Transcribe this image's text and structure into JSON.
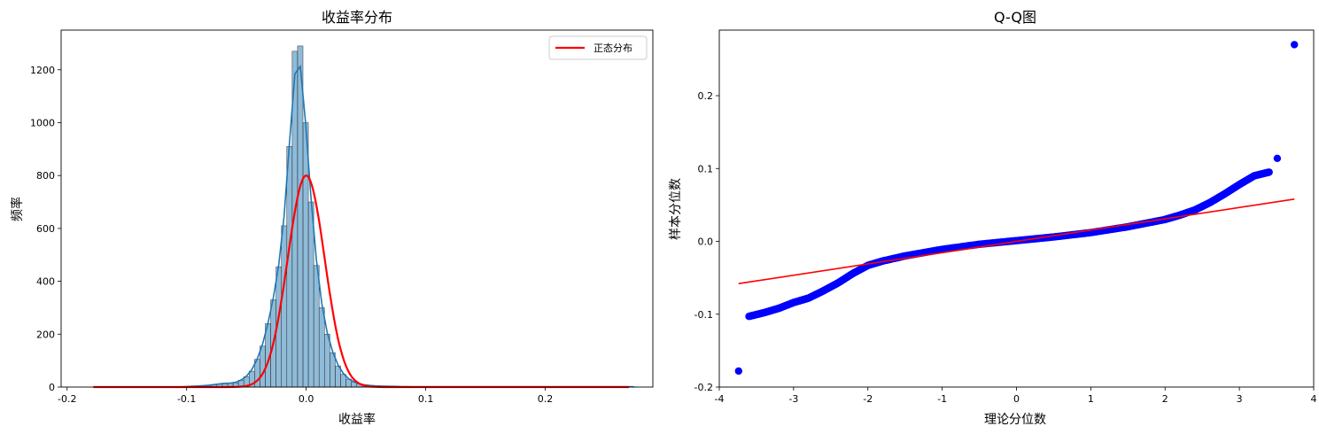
{
  "chart_data": [
    {
      "type": "bar",
      "subtype": "histogram",
      "title": "收益率分布",
      "xlabel": "收益率",
      "ylabel": "频率",
      "xlim": [
        -0.205,
        0.29
      ],
      "ylim": [
        0,
        1350
      ],
      "xticks": [
        -0.2,
        -0.1,
        0.0,
        0.1,
        0.2
      ],
      "xtick_labels": [
        "-0.2",
        "-0.1",
        "0.0",
        "0.1",
        "0.2"
      ],
      "yticks": [
        0,
        200,
        400,
        600,
        800,
        1000,
        1200
      ],
      "ytick_labels": [
        "0",
        "200",
        "400",
        "600",
        "800",
        "1000",
        "1200"
      ],
      "bin_width": 0.0045,
      "bins_start": -0.1782,
      "bin_counts": [
        1,
        0,
        0,
        0,
        0,
        0,
        0,
        0,
        0,
        0,
        0,
        0,
        0,
        0,
        0,
        0,
        1,
        2,
        3,
        4,
        5,
        7,
        9,
        12,
        15,
        14,
        16,
        26,
        39,
        60,
        105,
        155,
        240,
        330,
        455,
        610,
        910,
        1270,
        1290,
        1000,
        700,
        460,
        300,
        200,
        130,
        80,
        48,
        30,
        18,
        12,
        8,
        6,
        4,
        4,
        3,
        3,
        2,
        2,
        1,
        1,
        1,
        1,
        1,
        1,
        1,
        1,
        1,
        1,
        1,
        1,
        1,
        1,
        1,
        1,
        1,
        1,
        1,
        1,
        1,
        1,
        1,
        1,
        1,
        1,
        1,
        1,
        1,
        1,
        1,
        1,
        1,
        1,
        1,
        1,
        1,
        1,
        1,
        1,
        1,
        1,
        1
      ],
      "normal_curve": {
        "mean": 0.0,
        "std": 0.0155,
        "peak": 800
      },
      "series": [
        {
          "name": "正态分布",
          "color": "#ff0000"
        }
      ],
      "bar_color": "#1f77b4",
      "legend": "top-right"
    },
    {
      "type": "scatter",
      "title": "Q-Q图",
      "xlabel": "理论分位数",
      "ylabel": "样本分位数",
      "xlim": [
        -4.0,
        4.0
      ],
      "ylim": [
        -0.2,
        0.29
      ],
      "xticks": [
        -4,
        -3,
        -2,
        -1,
        0,
        1,
        2,
        3,
        4
      ],
      "xtick_labels": [
        "-4",
        "-3",
        "-2",
        "-1",
        "0",
        "1",
        "2",
        "3",
        "4"
      ],
      "yticks": [
        -0.2,
        -0.1,
        0.0,
        0.1,
        0.2
      ],
      "ytick_labels": [
        "-0.2",
        "-0.1",
        "0.0",
        "0.1",
        "0.2"
      ],
      "qq_curve_points": [
        [
          -3.6,
          -0.103
        ],
        [
          -3.4,
          -0.098
        ],
        [
          -3.2,
          -0.092
        ],
        [
          -3.0,
          -0.084
        ],
        [
          -2.8,
          -0.078
        ],
        [
          -2.6,
          -0.068
        ],
        [
          -2.4,
          -0.057
        ],
        [
          -2.2,
          -0.044
        ],
        [
          -2.0,
          -0.033
        ],
        [
          -1.8,
          -0.027
        ],
        [
          -1.5,
          -0.02
        ],
        [
          -1.0,
          -0.011
        ],
        [
          -0.5,
          -0.004
        ],
        [
          0.0,
          0.001
        ],
        [
          0.5,
          0.006
        ],
        [
          1.0,
          0.012
        ],
        [
          1.5,
          0.02
        ],
        [
          2.0,
          0.03
        ],
        [
          2.2,
          0.036
        ],
        [
          2.4,
          0.043
        ],
        [
          2.6,
          0.053
        ],
        [
          2.8,
          0.065
        ],
        [
          3.0,
          0.078
        ],
        [
          3.2,
          0.09
        ],
        [
          3.4,
          0.095
        ]
      ],
      "outliers": [
        [
          -3.74,
          -0.178
        ],
        [
          3.51,
          0.114
        ],
        [
          3.74,
          0.27
        ]
      ],
      "fit_line": {
        "x": [
          -3.74,
          3.74
        ],
        "y": [
          -0.058,
          0.058
        ]
      },
      "point_color": "#0000ff",
      "line_color": "#ff0000",
      "grid": false
    }
  ]
}
